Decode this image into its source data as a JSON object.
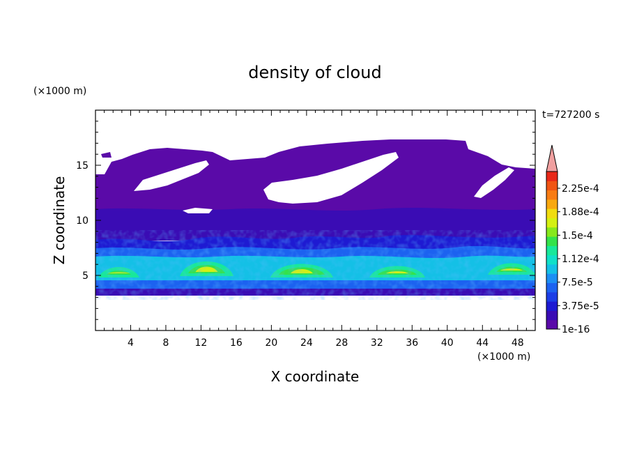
{
  "chart_data": {
    "type": "heatmap",
    "title": "density of cloud",
    "time_label": "t=727200 s",
    "xlabel": "X coordinate",
    "ylabel": "Z coordinate",
    "x_unit": "(×1000 m)",
    "y_unit": "(×1000 m)",
    "xlim": [
      0,
      50
    ],
    "ylim": [
      0,
      20
    ],
    "x_ticks": [
      4,
      8,
      12,
      16,
      20,
      24,
      28,
      32,
      36,
      40,
      44,
      48
    ],
    "y_ticks": [
      5,
      10,
      15
    ],
    "colorbar": {
      "min": 1e-16,
      "max": 0.00024,
      "extend": "max",
      "labels": [
        "2.25e-4",
        "1.88e-4",
        "1.5e-4",
        "1.12e-4",
        "7.5e-5",
        "3.75e-5",
        "1e-16"
      ],
      "colors": [
        "#5a0aa8",
        "#3a0cb4",
        "#1e1ad2",
        "#1c3ee6",
        "#1c62f0",
        "#1c8ef4",
        "#14c0e6",
        "#10e0c8",
        "#18e89a",
        "#34e24a",
        "#86e81c",
        "#d4f012",
        "#f0dc10",
        "#f8a810",
        "#f87c14",
        "#f05414",
        "#e82818"
      ],
      "over_color": "#f0a0a0"
    },
    "field_description_bands_z": [
      {
        "z": [
          3.3,
          4.8
        ],
        "level": "high-low"
      },
      {
        "z": [
          4.8,
          6.5
        ],
        "level": "peak ~1.5e-4 to 1.9e-4"
      },
      {
        "z": [
          6.5,
          9.0
        ],
        "level": "low ~3e-5"
      },
      {
        "z": [
          9.0,
          17.3
        ],
        "level": "very low ~1e-16 with clear gaps"
      }
    ]
  }
}
